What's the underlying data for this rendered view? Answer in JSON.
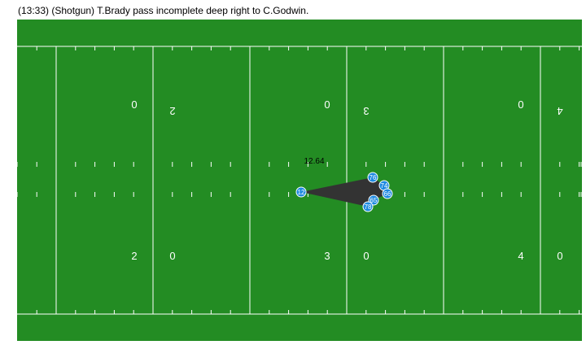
{
  "play_description": "(13:33) (Shotgun) T.Brady pass incomplete deep right to C.Godwin.",
  "colors": {
    "field": "#238c23",
    "field_border": "#ffffff",
    "player_fill": "#1e8ae0",
    "player_stroke": "#ffffff",
    "pass_polygon": "#333333"
  },
  "yard_markers": {
    "top_row": [
      "0",
      "2",
      "0",
      "3",
      "0",
      "4"
    ],
    "bottom_row": [
      "2",
      "0",
      "3",
      "0",
      "4",
      "0"
    ]
  },
  "players": {
    "passer": "12",
    "others": [
      "76",
      "74",
      "66",
      "65",
      "78"
    ]
  },
  "time_label": "12.64"
}
